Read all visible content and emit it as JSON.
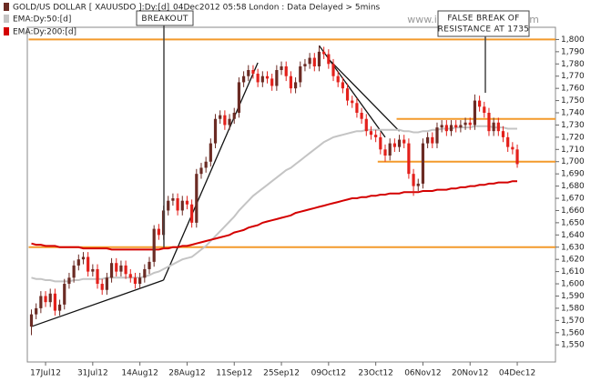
{
  "chart_data": {
    "type": "candlestick",
    "header_note": "04Dec2012 05:58 London : Data Delayed > 5mins",
    "watermark": "www.incrediblecharts.com",
    "annotations": [
      "BREAKOUT",
      "FALSE BREAK OF",
      "RESISTANCE AT 1735"
    ],
    "categories": [
      null,
      null,
      null,
      "17Jul12",
      null,
      null,
      null,
      null,
      null,
      null,
      null,
      null,
      null,
      "31Jul12",
      null,
      null,
      null,
      null,
      null,
      null,
      null,
      null,
      null,
      "14Aug12",
      null,
      null,
      null,
      null,
      null,
      null,
      null,
      null,
      null,
      "28Aug12",
      null,
      null,
      null,
      null,
      null,
      null,
      null,
      null,
      null,
      "11Sep12",
      null,
      null,
      null,
      null,
      null,
      null,
      null,
      null,
      null,
      "25Sep12",
      null,
      null,
      null,
      null,
      null,
      null,
      null,
      null,
      null,
      "09Oct12",
      null,
      null,
      null,
      null,
      null,
      null,
      null,
      null,
      null,
      "23Oct12",
      null,
      null,
      null,
      null,
      null,
      null,
      null,
      null,
      null,
      "06Nov12",
      null,
      null,
      null,
      null,
      null,
      null,
      null,
      null,
      null,
      "20Nov12",
      null,
      null,
      null,
      null,
      null,
      null,
      null,
      null,
      null,
      "04Dec12"
    ],
    "series": [
      {
        "name": "GOLD/US DOLLAR [ XAUUSDO ]:Dy:[d]",
        "color": "#6b2b24",
        "down_color": "#e3201b",
        "open": [
          1565,
          1575,
          1580,
          1590,
          1585,
          1592,
          1578,
          1583,
          1600,
          1605,
          1615,
          1620,
          1622,
          1610,
          1612,
          1600,
          1595,
          1605,
          1617,
          1610,
          1615,
          1608,
          1605,
          1600,
          1605,
          1612,
          1618,
          1645,
          1640,
          1660,
          1668,
          1670,
          1660,
          1668,
          1665,
          1650,
          1690,
          1695,
          1700,
          1715,
          1735,
          1738,
          1730,
          1735,
          1740,
          1765,
          1770,
          1775,
          1772,
          1765,
          1770,
          1768,
          1762,
          1775,
          1778,
          1770,
          1760,
          1765,
          1778,
          1780,
          1785,
          1778,
          1790,
          1788,
          1780,
          1770,
          1765,
          1760,
          1750,
          1748,
          1740,
          1735,
          1725,
          1722,
          1720,
          1710,
          1705,
          1715,
          1712,
          1718,
          1715,
          1690,
          1680,
          1682,
          1715,
          1720,
          1715,
          1728,
          1730,
          1725,
          1730,
          1728,
          1730,
          1732,
          1730,
          1750,
          1745,
          1740,
          1725,
          1732,
          1725,
          1720,
          1712,
          1710
        ],
        "high": [
          1579,
          1584,
          1594,
          1594,
          1596,
          1596,
          1587,
          1604,
          1609,
          1619,
          1624,
          1626,
          1626,
          1616,
          1616,
          1604,
          1609,
          1621,
          1621,
          1619,
          1619,
          1612,
          1609,
          1609,
          1616,
          1622,
          1648,
          1649,
          1664,
          1672,
          1674,
          1674,
          1672,
          1672,
          1669,
          1694,
          1699,
          1704,
          1719,
          1739,
          1742,
          1742,
          1739,
          1744,
          1769,
          1774,
          1779,
          1779,
          1776,
          1774,
          1774,
          1772,
          1779,
          1782,
          1782,
          1774,
          1769,
          1782,
          1784,
          1789,
          1789,
          1795,
          1794,
          1792,
          1784,
          1774,
          1769,
          1764,
          1754,
          1752,
          1744,
          1739,
          1729,
          1726,
          1724,
          1714,
          1719,
          1719,
          1722,
          1722,
          1719,
          1694,
          1686,
          1719,
          1724,
          1724,
          1732,
          1734,
          1734,
          1734,
          1734,
          1734,
          1736,
          1736,
          1755,
          1754,
          1749,
          1744,
          1736,
          1736,
          1729,
          1724,
          1716,
          1714
        ],
        "low": [
          1558,
          1571,
          1576,
          1581,
          1581,
          1574,
          1574,
          1579,
          1596,
          1601,
          1611,
          1616,
          1606,
          1606,
          1596,
          1591,
          1591,
          1601,
          1606,
          1606,
          1604,
          1601,
          1596,
          1596,
          1601,
          1608,
          1614,
          1636,
          1636,
          1656,
          1664,
          1656,
          1656,
          1661,
          1646,
          1646,
          1686,
          1691,
          1696,
          1711,
          1731,
          1726,
          1726,
          1731,
          1736,
          1761,
          1766,
          1768,
          1761,
          1761,
          1764,
          1758,
          1758,
          1771,
          1766,
          1756,
          1756,
          1761,
          1774,
          1776,
          1774,
          1774,
          1784,
          1776,
          1766,
          1761,
          1756,
          1746,
          1744,
          1736,
          1731,
          1721,
          1718,
          1716,
          1706,
          1700,
          1701,
          1708,
          1708,
          1711,
          1686,
          1672,
          1676,
          1678,
          1711,
          1711,
          1711,
          1724,
          1721,
          1721,
          1724,
          1724,
          1726,
          1726,
          1726,
          1741,
          1736,
          1721,
          1721,
          1721,
          1716,
          1708,
          1706,
          1695
        ],
        "close": [
          1575,
          1580,
          1590,
          1585,
          1592,
          1578,
          1583,
          1600,
          1605,
          1615,
          1620,
          1622,
          1610,
          1612,
          1600,
          1595,
          1605,
          1617,
          1610,
          1615,
          1608,
          1605,
          1600,
          1605,
          1612,
          1618,
          1645,
          1640,
          1660,
          1668,
          1670,
          1660,
          1668,
          1665,
          1650,
          1690,
          1695,
          1700,
          1715,
          1735,
          1738,
          1730,
          1735,
          1740,
          1765,
          1770,
          1775,
          1772,
          1765,
          1770,
          1768,
          1762,
          1775,
          1778,
          1770,
          1760,
          1765,
          1778,
          1780,
          1785,
          1778,
          1790,
          1788,
          1780,
          1770,
          1765,
          1760,
          1750,
          1748,
          1740,
          1735,
          1725,
          1722,
          1720,
          1710,
          1705,
          1715,
          1712,
          1718,
          1715,
          1690,
          1680,
          1682,
          1715,
          1720,
          1715,
          1728,
          1730,
          1725,
          1730,
          1728,
          1730,
          1732,
          1730,
          1750,
          1745,
          1740,
          1725,
          1732,
          1725,
          1720,
          1712,
          1710,
          1698
        ]
      },
      {
        "name": "EMA:Dy:50:[d]",
        "type": "line",
        "color": "#c4c4c4",
        "values": [
          1605,
          1604,
          1604,
          1603,
          1603,
          1602,
          1602,
          1602,
          1602,
          1603,
          1603,
          1604,
          1604,
          1604,
          1604,
          1604,
          1605,
          1605,
          1605,
          1605,
          1605,
          1605,
          1605,
          1605,
          1606,
          1607,
          1609,
          1610,
          1612,
          1614,
          1616,
          1618,
          1620,
          1621,
          1622,
          1625,
          1628,
          1631,
          1635,
          1639,
          1643,
          1647,
          1651,
          1655,
          1660,
          1664,
          1668,
          1672,
          1675,
          1678,
          1681,
          1684,
          1687,
          1690,
          1693,
          1695,
          1698,
          1701,
          1704,
          1707,
          1710,
          1713,
          1716,
          1718,
          1720,
          1721,
          1722,
          1723,
          1724,
          1725,
          1725,
          1726,
          1726,
          1726,
          1726,
          1726,
          1726,
          1726,
          1726,
          1725,
          1725,
          1724,
          1724,
          1725,
          1725,
          1726,
          1726,
          1727,
          1727,
          1727,
          1728,
          1728,
          1728,
          1728,
          1729,
          1729,
          1729,
          1729,
          1728,
          1728,
          1728,
          1727,
          1727,
          1727
        ]
      },
      {
        "name": "EMA:Dy:200:[d]",
        "type": "line",
        "color": "#d40000",
        "values": [
          1633,
          1632,
          1632,
          1631,
          1631,
          1631,
          1630,
          1630,
          1630,
          1630,
          1630,
          1629,
          1629,
          1629,
          1629,
          1629,
          1629,
          1628,
          1628,
          1628,
          1628,
          1628,
          1628,
          1628,
          1628,
          1628,
          1628,
          1628,
          1629,
          1629,
          1630,
          1630,
          1631,
          1631,
          1632,
          1633,
          1634,
          1635,
          1636,
          1637,
          1638,
          1639,
          1640,
          1642,
          1643,
          1644,
          1646,
          1647,
          1648,
          1650,
          1651,
          1652,
          1653,
          1654,
          1655,
          1656,
          1658,
          1659,
          1660,
          1661,
          1662,
          1663,
          1664,
          1665,
          1666,
          1667,
          1668,
          1669,
          1670,
          1670,
          1671,
          1671,
          1672,
          1672,
          1673,
          1673,
          1674,
          1674,
          1674,
          1675,
          1675,
          1675,
          1675,
          1676,
          1676,
          1676,
          1677,
          1677,
          1677,
          1678,
          1678,
          1679,
          1679,
          1680,
          1680,
          1681,
          1681,
          1682,
          1682,
          1683,
          1683,
          1683,
          1684,
          1684
        ]
      }
    ],
    "levels": [
      {
        "value": 1800,
        "from": 0
      },
      {
        "value": 1735,
        "from": 78
      },
      {
        "value": 1700,
        "from": 74
      },
      {
        "value": 1630,
        "from": 0
      }
    ],
    "level_color": "#f39a2b",
    "trendlines": [
      [
        [
          0,
          1565
        ],
        [
          28,
          1603
        ]
      ],
      [
        [
          28,
          1603
        ],
        [
          48,
          1781
        ]
      ],
      [
        [
          61,
          1795
        ],
        [
          75,
          1720
        ]
      ],
      [
        [
          63,
          1784
        ],
        [
          78,
          1725
        ]
      ]
    ],
    "ylim": [
      1536,
      1810
    ],
    "yticks": [
      {
        "value": 1550,
        "label": "1,550"
      },
      {
        "value": 1560,
        "label": "1,560"
      },
      {
        "value": 1570,
        "label": "1,570"
      },
      {
        "value": 1580,
        "label": "1,580"
      },
      {
        "value": 1590,
        "label": "1,590"
      },
      {
        "value": 1600,
        "label": "1,600"
      },
      {
        "value": 1610,
        "label": "1,610"
      },
      {
        "value": 1620,
        "label": "1,620"
      },
      {
        "value": 1630,
        "label": "1,630"
      },
      {
        "value": 1640,
        "label": "1,640"
      },
      {
        "value": 1650,
        "label": "1,650"
      },
      {
        "value": 1660,
        "label": "1,660"
      },
      {
        "value": 1670,
        "label": "1,670"
      },
      {
        "value": 1680,
        "label": "1,680"
      },
      {
        "value": 1690,
        "label": "1,690"
      },
      {
        "value": 1700,
        "label": "1,700"
      },
      {
        "value": 1710,
        "label": "1,710"
      },
      {
        "value": 1720,
        "label": "1,720"
      },
      {
        "value": 1730,
        "label": "1,730"
      },
      {
        "value": 1740,
        "label": "1,740"
      },
      {
        "value": 1750,
        "label": "1,750"
      },
      {
        "value": 1760,
        "label": "1,760"
      },
      {
        "value": 1770,
        "label": "1,770"
      },
      {
        "value": 1780,
        "label": "1,780"
      },
      {
        "value": 1790,
        "label": "1,790"
      },
      {
        "value": 1800,
        "label": "1,800"
      }
    ]
  }
}
